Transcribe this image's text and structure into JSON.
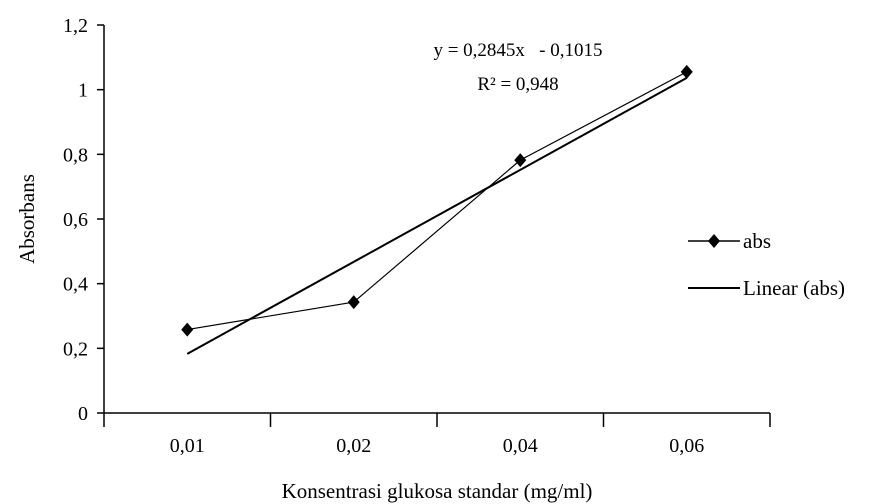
{
  "chart_data": {
    "type": "line",
    "categories": [
      "0,01",
      "0,02",
      "0,04",
      "0,06"
    ],
    "series": [
      {
        "name": "abs",
        "values": [
          0.258,
          0.343,
          0.782,
          1.055
        ],
        "marker": "diamond",
        "color": "#000000"
      },
      {
        "name": "Linear (abs)",
        "type": "trendline",
        "slope": 0.2845,
        "intercept": -0.1015,
        "color": "#000000"
      }
    ],
    "xlabel": "Konsentrasi glukosa standar (mg/ml)",
    "ylabel": "Absorbans",
    "ylim": [
      0,
      1.2
    ],
    "yticks": [
      "0",
      "0,2",
      "0,4",
      "0,6",
      "0,8",
      "1",
      "1,2"
    ],
    "grid": false,
    "legend_position": "right",
    "annotation": {
      "equation": "y = 0,2845x   - 0,1015",
      "r_squared": "R² = 0,948"
    }
  }
}
